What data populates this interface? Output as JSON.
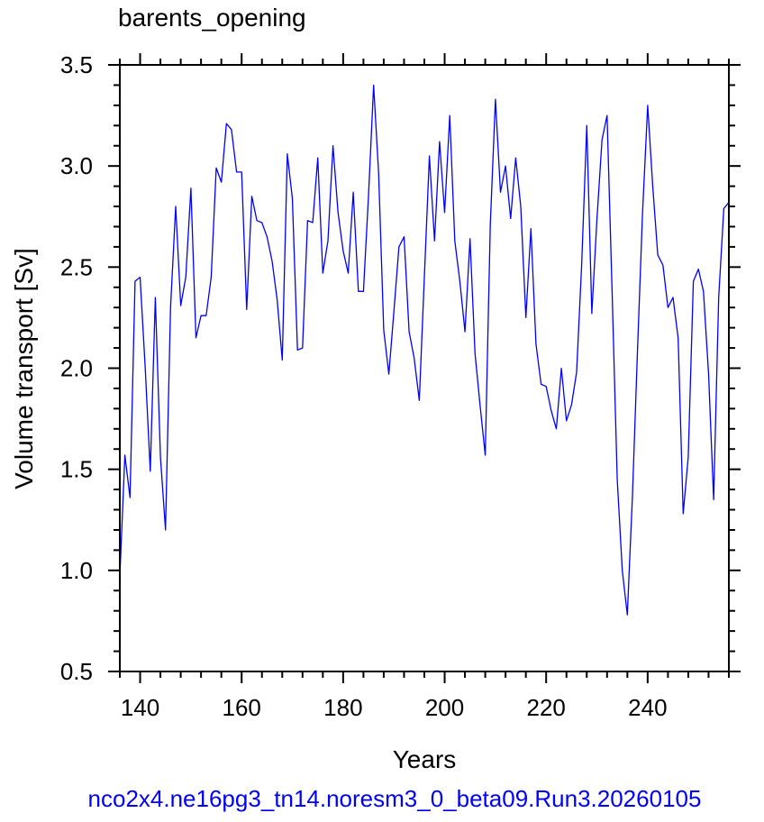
{
  "chart_data": {
    "type": "line",
    "title": "barents_opening",
    "xlabel": "Years",
    "ylabel": "Volume transport [Sv]",
    "xlim": [
      136,
      256
    ],
    "ylim": [
      0.5,
      3.5
    ],
    "xticks": [
      140,
      160,
      180,
      200,
      220,
      240
    ],
    "yticks": [
      0.5,
      1.0,
      1.5,
      2.0,
      2.5,
      3.0,
      3.5
    ],
    "ytick_labels": [
      "0.5",
      "1.0",
      "1.5",
      "2.0",
      "2.5",
      "3.0",
      "3.5"
    ],
    "grid": false,
    "line_color": "#0000ff",
    "series": [
      {
        "x": [
          136,
          137,
          138,
          139,
          140,
          141,
          142,
          143,
          144,
          145,
          146,
          147,
          148,
          149,
          150,
          151,
          152,
          153,
          154,
          155,
          156,
          157,
          158,
          159,
          160,
          161,
          162,
          163,
          164,
          165,
          166,
          167,
          168,
          169,
          170,
          171,
          172,
          173,
          174,
          175,
          176,
          177,
          178,
          179,
          180,
          181,
          182,
          183,
          184,
          185,
          186,
          187,
          188,
          189,
          190,
          191,
          192,
          193,
          194,
          195,
          196,
          197,
          198,
          199,
          200,
          201,
          202,
          203,
          204,
          205,
          206,
          207,
          208,
          209,
          210,
          211,
          212,
          213,
          214,
          215,
          216,
          217,
          218,
          219,
          220,
          221,
          222,
          223,
          224,
          225,
          226,
          227,
          228,
          229,
          230,
          231,
          232,
          233,
          234,
          235,
          236,
          237,
          238,
          239,
          240,
          241,
          242,
          243,
          244,
          245,
          246,
          247,
          248,
          249,
          250,
          251,
          252,
          253,
          254,
          255,
          256
        ],
        "y": [
          0.97,
          1.57,
          1.36,
          2.43,
          2.45,
          2.0,
          1.49,
          2.35,
          1.56,
          1.2,
          2.3,
          2.8,
          2.31,
          2.45,
          2.89,
          2.15,
          2.26,
          2.26,
          2.45,
          2.99,
          2.92,
          3.21,
          3.18,
          2.97,
          2.97,
          2.29,
          2.85,
          2.73,
          2.72,
          2.65,
          2.53,
          2.34,
          2.04,
          3.06,
          2.84,
          2.09,
          2.1,
          2.73,
          2.72,
          3.04,
          2.47,
          2.63,
          3.1,
          2.77,
          2.58,
          2.47,
          2.87,
          2.38,
          2.38,
          2.85,
          3.4,
          2.96,
          2.19,
          1.97,
          2.28,
          2.6,
          2.65,
          2.18,
          2.05,
          1.84,
          2.45,
          3.05,
          2.63,
          3.12,
          2.77,
          3.25,
          2.63,
          2.43,
          2.18,
          2.64,
          2.07,
          1.81,
          1.57,
          2.71,
          3.33,
          2.87,
          3.0,
          2.74,
          3.04,
          2.8,
          2.25,
          2.69,
          2.12,
          1.92,
          1.91,
          1.79,
          1.7,
          2.0,
          1.74,
          1.82,
          1.98,
          2.51,
          3.2,
          2.27,
          2.73,
          3.13,
          3.25,
          2.38,
          1.45,
          1.0,
          0.78,
          1.37,
          2.09,
          2.77,
          3.3,
          2.9,
          2.56,
          2.51,
          2.3,
          2.35,
          2.15,
          1.28,
          1.56,
          2.43,
          2.49,
          2.38,
          1.97,
          1.35,
          2.35,
          2.79,
          2.82
        ]
      }
    ]
  },
  "caption": {
    "text": "nco2x4.ne16pg3_tn14.noresm3_0_beta09.Run3.20260105",
    "color": "#0000ff"
  }
}
